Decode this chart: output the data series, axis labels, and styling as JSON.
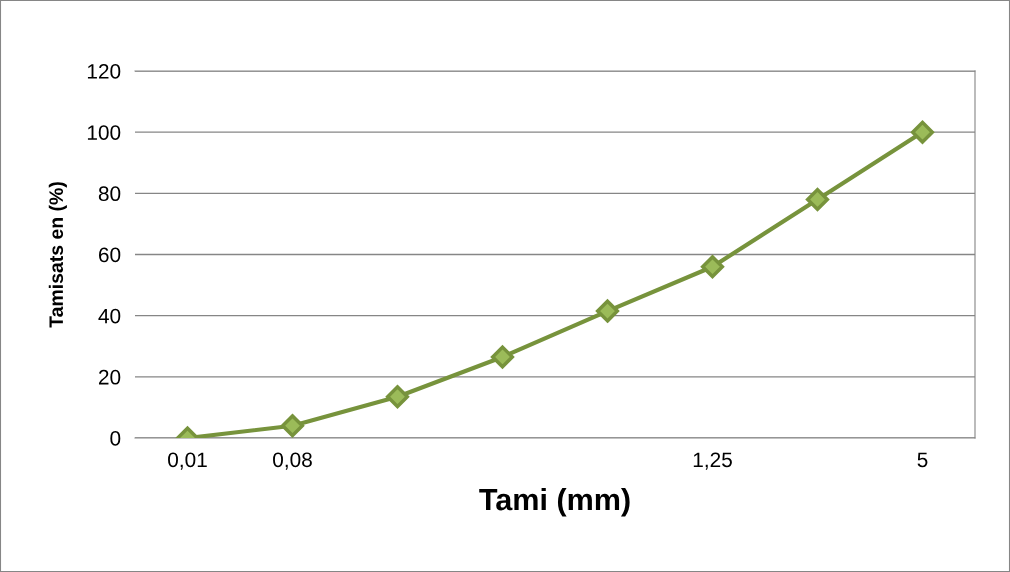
{
  "chart_data": {
    "type": "line",
    "xlabel": "Tami (mm)",
    "ylabel": "Tamisats en (%)",
    "categories": [
      "0,01",
      "0,08",
      null,
      null,
      null,
      "1,25",
      null,
      "5"
    ],
    "series": [
      {
        "color": "#77933c",
        "values": [
          0,
          4,
          13.5,
          26.5,
          41.5,
          56,
          78,
          100
        ]
      }
    ],
    "ylim": [
      0,
      120
    ],
    "yticks": [
      0,
      20,
      40,
      60,
      80,
      100,
      120
    ],
    "grid": "y",
    "marker": "diamond",
    "line_style": "solid"
  }
}
